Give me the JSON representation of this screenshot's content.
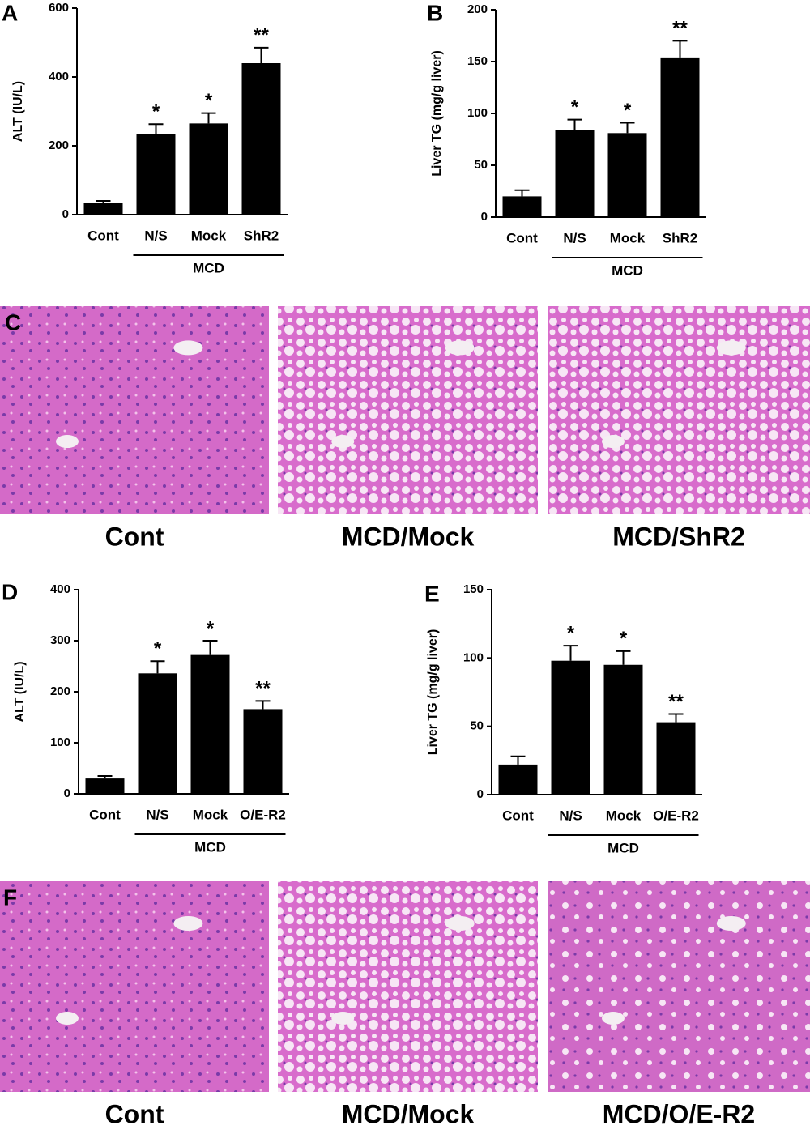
{
  "chart_data": [
    {
      "type": "bar",
      "panel": "A",
      "y_label": "ALT (IU/L)",
      "categories": [
        "Cont",
        "N/S",
        "Mock",
        "ShR2"
      ],
      "values": [
        35,
        235,
        265,
        440
      ],
      "errors": [
        5,
        28,
        30,
        45
      ],
      "annotations": [
        null,
        "*",
        "*",
        "**"
      ],
      "group_label": "MCD",
      "color": "#000000",
      "ylim": [
        0,
        600
      ],
      "yticks": [
        0,
        200,
        400,
        600
      ]
    },
    {
      "type": "bar",
      "panel": "B",
      "y_label": "Liver TG (mg/g liver)",
      "categories": [
        "Cont",
        "N/S",
        "Mock",
        "ShR2"
      ],
      "values": [
        20,
        84,
        81,
        154
      ],
      "errors": [
        6,
        10,
        10,
        16
      ],
      "annotations": [
        null,
        "*",
        "*",
        "**"
      ],
      "group_label": "MCD",
      "color": "#000000",
      "ylim": [
        0,
        200
      ],
      "yticks": [
        0,
        50,
        100,
        150,
        200
      ]
    },
    {
      "type": "bar",
      "panel": "D",
      "y_label": "ALT (IU/L)",
      "categories": [
        "Cont",
        "N/S",
        "Mock",
        "O/E-R2"
      ],
      "values": [
        30,
        236,
        272,
        166
      ],
      "errors": [
        5,
        24,
        28,
        16
      ],
      "annotations": [
        null,
        "*",
        "*",
        "**"
      ],
      "group_label": "MCD",
      "color": "#000000",
      "ylim": [
        0,
        400
      ],
      "yticks": [
        0,
        100,
        200,
        300,
        400
      ]
    },
    {
      "type": "bar",
      "panel": "E",
      "y_label": "Liver TG (mg/g liver)",
      "categories": [
        "Cont",
        "N/S",
        "Mock",
        "O/E-R2"
      ],
      "values": [
        22,
        98,
        95,
        53
      ],
      "errors": [
        6,
        11,
        10,
        6
      ],
      "annotations": [
        null,
        "*",
        "*",
        "**"
      ],
      "group_label": "MCD",
      "color": "#000000",
      "ylim": [
        0,
        150
      ],
      "yticks": [
        0,
        50,
        100,
        150
      ]
    }
  ],
  "histology": [
    {
      "panel": "C",
      "captions": [
        "Cont",
        "MCD/Mock",
        "MCD/ShR2"
      ]
    },
    {
      "panel": "F",
      "captions": [
        "Cont",
        "MCD/Mock",
        "MCD/O/E-R2"
      ]
    }
  ]
}
